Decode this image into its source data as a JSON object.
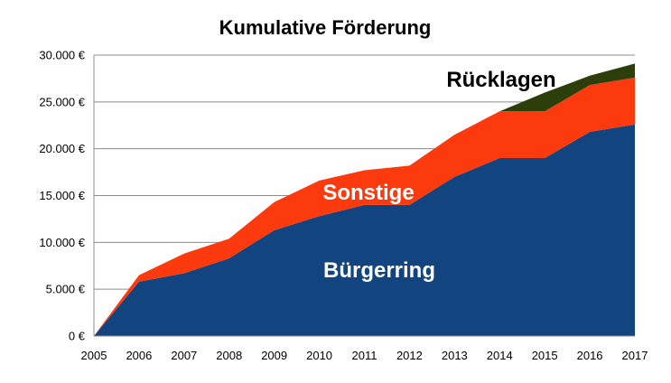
{
  "chart_data": {
    "type": "area",
    "stacked": true,
    "title": "Kumulative Förderung",
    "xlabel": "",
    "ylabel": "",
    "x": [
      "2005",
      "2006",
      "2007",
      "2008",
      "2009",
      "2010",
      "2011",
      "2012",
      "2013",
      "2014",
      "2015",
      "2016",
      "2017"
    ],
    "ylim": [
      0,
      30000
    ],
    "y_ticks": [
      "0 €",
      "5.000 €",
      "10.000 €",
      "15.000 €",
      "20.000 €",
      "25.000 €",
      "30.000 €"
    ],
    "y_tick_values": [
      0,
      5000,
      10000,
      15000,
      20000,
      25000,
      30000
    ],
    "grid": true,
    "legend": "none",
    "series": [
      {
        "name": "Bürgerring",
        "color": "#12457f",
        "label_color": "#ffffff",
        "values": [
          0,
          5800,
          6700,
          8300,
          11300,
          12800,
          14000,
          14000,
          17000,
          19000,
          19000,
          21800,
          22600
        ]
      },
      {
        "name": "Sonstige",
        "color": "#fd3a0e",
        "label_color": "#ffffff",
        "values": [
          0,
          700,
          2100,
          2100,
          3000,
          3800,
          3700,
          4200,
          4500,
          5000,
          5000,
          5000,
          5000
        ]
      },
      {
        "name": "Rücklagen",
        "color": "#2c3e0a",
        "label_color": "#000000",
        "values": [
          0,
          0,
          0,
          0,
          0,
          0,
          0,
          0,
          0,
          0,
          2000,
          1000,
          1500
        ]
      }
    ]
  }
}
